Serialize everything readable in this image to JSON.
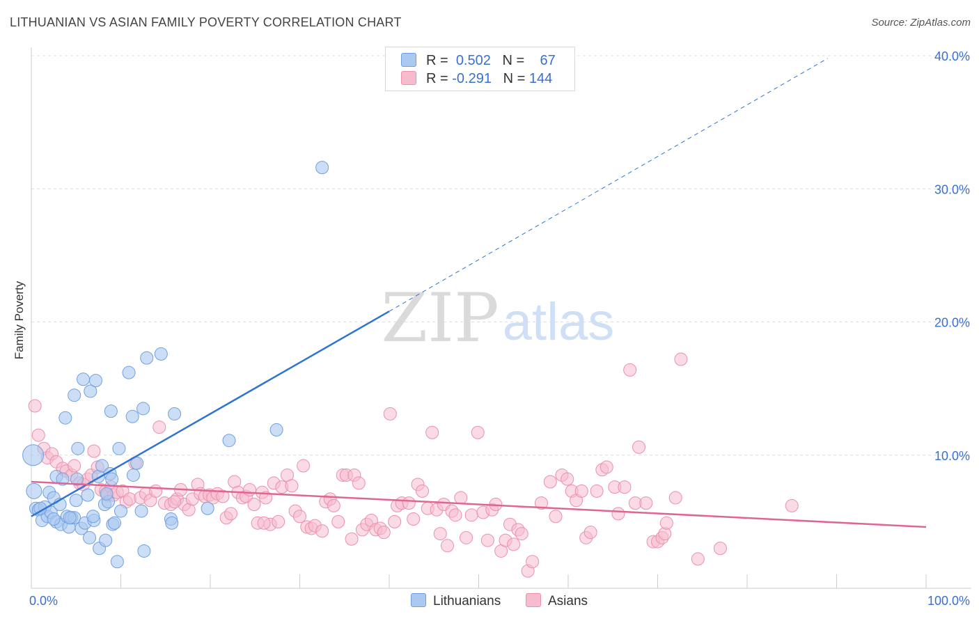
{
  "title": "LITHUANIAN VS ASIAN FAMILY POVERTY CORRELATION CHART",
  "source": "Source: ZipAtlas.com",
  "watermark": {
    "zip": "ZIP",
    "atlas": "atlas"
  },
  "legend_top": {
    "row1": {
      "r_label": "R =",
      "r_value": "0.502",
      "n_label": "N =",
      "n_value": "67"
    },
    "row2": {
      "r_label": "R =",
      "r_value": "-0.291",
      "n_label": "N =",
      "n_value": "144"
    }
  },
  "legend_bottom": {
    "series1": "Lithuanians",
    "series2": "Asians"
  },
  "colors": {
    "lithuanian_fill": "#aac8f0",
    "lithuanian_stroke": "#6f9fe0",
    "lithuanian_line": "#2f74d0",
    "asian_fill": "#f6bccd",
    "asian_stroke": "#ec8fab",
    "asian_line": "#e06595",
    "axis_label": "#3a6fd1",
    "grid": "#dcdcdc"
  },
  "chart_data": {
    "type": "scatter",
    "title": "LITHUANIAN VS ASIAN FAMILY POVERTY CORRELATION CHART",
    "xlabel": "",
    "ylabel": "Family Poverty",
    "xlim": [
      0,
      100
    ],
    "ylim": [
      0,
      40
    ],
    "x_tick_labels": [
      "0.0%",
      "100.0%"
    ],
    "y_tick_labels": [
      "10.0%",
      "20.0%",
      "30.0%",
      "40.0%"
    ],
    "y_ticks": [
      10,
      20,
      30,
      40
    ],
    "grid": true,
    "legend_position": "top-center",
    "series": [
      {
        "name": "Lithuanians",
        "R": 0.502,
        "N": 67,
        "trend": {
          "x_start": 0,
          "y_start": 5.4,
          "x_end_solid": 40,
          "y_end_solid": 20.8,
          "x_end_dashed": 89,
          "y_end_dashed": 39.8
        },
        "points": [
          [
            0.2,
            10.0
          ],
          [
            0.3,
            7.3
          ],
          [
            0.5,
            6.0
          ],
          [
            0.8,
            5.9
          ],
          [
            1.2,
            5.1
          ],
          [
            1.5,
            6.1
          ],
          [
            1.8,
            5.4
          ],
          [
            2.0,
            7.2
          ],
          [
            2.2,
            5.7
          ],
          [
            2.5,
            6.8
          ],
          [
            2.8,
            5.0
          ],
          [
            2.8,
            8.4
          ],
          [
            3.3,
            4.8
          ],
          [
            3.5,
            8.2
          ],
          [
            3.2,
            6.3
          ],
          [
            3.8,
            12.8
          ],
          [
            4.0,
            5.4
          ],
          [
            4.2,
            4.6
          ],
          [
            4.5,
            5.3
          ],
          [
            4.8,
            5.3
          ],
          [
            4.8,
            14.5
          ],
          [
            5.0,
            6.6
          ],
          [
            5.2,
            10.5
          ],
          [
            5.6,
            4.5
          ],
          [
            5.8,
            15.7
          ],
          [
            6.0,
            4.9
          ],
          [
            6.3,
            7.0
          ],
          [
            6.5,
            3.8
          ],
          [
            6.6,
            14.8
          ],
          [
            7.0,
            5.1
          ],
          [
            7.2,
            15.6
          ],
          [
            7.5,
            8.4
          ],
          [
            7.6,
            3.0
          ],
          [
            7.9,
            9.2
          ],
          [
            8.2,
            6.3
          ],
          [
            8.3,
            3.6
          ],
          [
            8.6,
            6.5
          ],
          [
            8.8,
            8.6
          ],
          [
            8.9,
            13.3
          ],
          [
            9.1,
            4.8
          ],
          [
            9.3,
            4.9
          ],
          [
            9.6,
            2.0
          ],
          [
            9.8,
            10.5
          ],
          [
            10.0,
            5.8
          ],
          [
            10.9,
            16.2
          ],
          [
            11.3,
            12.9
          ],
          [
            11.4,
            8.5
          ],
          [
            11.8,
            9.4
          ],
          [
            12.3,
            5.8
          ],
          [
            12.5,
            13.5
          ],
          [
            12.6,
            2.8
          ],
          [
            12.9,
            17.3
          ],
          [
            14.5,
            17.6
          ],
          [
            15.6,
            5.2
          ],
          [
            15.7,
            4.9
          ],
          [
            16.0,
            13.1
          ],
          [
            19.7,
            6.0
          ],
          [
            22.1,
            11.1
          ],
          [
            27.4,
            11.9
          ],
          [
            32.5,
            31.6
          ],
          [
            1.0,
            6.0
          ],
          [
            2.5,
            5.2
          ],
          [
            4.3,
            5.3
          ],
          [
            5.1,
            8.2
          ],
          [
            6.9,
            5.4
          ],
          [
            9.0,
            8.2
          ],
          [
            8.4,
            7.1
          ]
        ]
      },
      {
        "name": "Asians",
        "R": -0.291,
        "N": 144,
        "trend": {
          "x_start": 0,
          "y_start": 8.0,
          "x_end": 100,
          "y_end": 4.6
        },
        "points": [
          [
            0.4,
            13.7
          ],
          [
            0.8,
            11.5
          ],
          [
            1.4,
            10.5
          ],
          [
            1.8,
            9.8
          ],
          [
            2.3,
            10.1
          ],
          [
            2.8,
            9.5
          ],
          [
            3.5,
            9.0
          ],
          [
            3.9,
            8.8
          ],
          [
            4.5,
            8.5
          ],
          [
            4.8,
            9.2
          ],
          [
            5.4,
            7.9
          ],
          [
            5.8,
            7.8
          ],
          [
            6.3,
            8.2
          ],
          [
            6.7,
            8.5
          ],
          [
            7.0,
            10.3
          ],
          [
            7.4,
            9.1
          ],
          [
            7.8,
            7.4
          ],
          [
            8.3,
            7.3
          ],
          [
            8.5,
            7.0
          ],
          [
            8.9,
            7.6
          ],
          [
            9.2,
            7.0
          ],
          [
            9.6,
            7.2
          ],
          [
            10.2,
            7.3
          ],
          [
            10.6,
            6.5
          ],
          [
            11.0,
            6.7
          ],
          [
            11.6,
            9.4
          ],
          [
            12.2,
            6.8
          ],
          [
            12.8,
            7.1
          ],
          [
            13.3,
            6.6
          ],
          [
            13.9,
            7.3
          ],
          [
            14.3,
            12.1
          ],
          [
            14.9,
            6.4
          ],
          [
            15.6,
            6.3
          ],
          [
            16.3,
            6.7
          ],
          [
            16.7,
            7.4
          ],
          [
            17.1,
            6.3
          ],
          [
            17.6,
            5.9
          ],
          [
            18.0,
            6.7
          ],
          [
            18.6,
            7.8
          ],
          [
            18.9,
            7.1
          ],
          [
            19.4,
            6.9
          ],
          [
            19.9,
            7.0
          ],
          [
            20.3,
            6.8
          ],
          [
            20.8,
            7.1
          ],
          [
            21.4,
            6.9
          ],
          [
            21.8,
            5.3
          ],
          [
            22.3,
            5.6
          ],
          [
            22.7,
            8.0
          ],
          [
            23.1,
            7.2
          ],
          [
            23.6,
            6.8
          ],
          [
            24.0,
            6.9
          ],
          [
            24.4,
            7.4
          ],
          [
            24.9,
            6.3
          ],
          [
            25.3,
            4.9
          ],
          [
            25.8,
            7.2
          ],
          [
            26.2,
            6.8
          ],
          [
            26.7,
            4.8
          ],
          [
            27.1,
            7.9
          ],
          [
            27.6,
            5.0
          ],
          [
            28.0,
            7.6
          ],
          [
            28.6,
            8.5
          ],
          [
            29.1,
            7.7
          ],
          [
            29.5,
            5.8
          ],
          [
            30.0,
            5.4
          ],
          [
            30.4,
            9.2
          ],
          [
            30.8,
            4.6
          ],
          [
            31.3,
            4.5
          ],
          [
            31.7,
            4.7
          ],
          [
            32.5,
            4.3
          ],
          [
            32.9,
            6.5
          ],
          [
            33.4,
            6.7
          ],
          [
            33.8,
            6.2
          ],
          [
            34.3,
            5.0
          ],
          [
            34.8,
            8.5
          ],
          [
            35.2,
            8.5
          ],
          [
            35.8,
            3.7
          ],
          [
            36.1,
            8.5
          ],
          [
            36.6,
            7.9
          ],
          [
            37.0,
            4.4
          ],
          [
            37.5,
            4.8
          ],
          [
            38.0,
            5.1
          ],
          [
            38.5,
            4.4
          ],
          [
            39.0,
            4.5
          ],
          [
            39.4,
            4.2
          ],
          [
            40.1,
            13.1
          ],
          [
            40.6,
            5.0
          ],
          [
            40.9,
            6.2
          ],
          [
            41.4,
            6.4
          ],
          [
            42.2,
            6.4
          ],
          [
            42.7,
            5.2
          ],
          [
            43.2,
            7.8
          ],
          [
            43.7,
            7.3
          ],
          [
            44.3,
            6.0
          ],
          [
            44.8,
            11.7
          ],
          [
            45.3,
            5.9
          ],
          [
            45.7,
            4.1
          ],
          [
            46.1,
            6.3
          ],
          [
            46.5,
            3.2
          ],
          [
            47.0,
            5.8
          ],
          [
            47.4,
            5.5
          ],
          [
            48.0,
            6.8
          ],
          [
            48.6,
            3.8
          ],
          [
            49.2,
            5.5
          ],
          [
            49.9,
            11.7
          ],
          [
            50.5,
            5.7
          ],
          [
            51.0,
            3.6
          ],
          [
            51.5,
            5.9
          ],
          [
            51.9,
            6.3
          ],
          [
            52.5,
            2.8
          ],
          [
            53.0,
            3.6
          ],
          [
            53.5,
            4.8
          ],
          [
            53.9,
            3.3
          ],
          [
            54.4,
            4.4
          ],
          [
            54.8,
            4.1
          ],
          [
            55.5,
            1.3
          ],
          [
            56.0,
            2.0
          ],
          [
            57.0,
            6.4
          ],
          [
            58.0,
            8.0
          ],
          [
            58.6,
            5.4
          ],
          [
            59.3,
            8.5
          ],
          [
            59.9,
            8.2
          ],
          [
            60.4,
            7.3
          ],
          [
            60.9,
            6.6
          ],
          [
            61.5,
            7.3
          ],
          [
            62.0,
            3.8
          ],
          [
            62.5,
            4.2
          ],
          [
            63.2,
            7.3
          ],
          [
            63.8,
            8.9
          ],
          [
            64.3,
            9.1
          ],
          [
            65.2,
            7.6
          ],
          [
            65.6,
            5.6
          ],
          [
            66.3,
            7.6
          ],
          [
            66.9,
            16.4
          ],
          [
            67.5,
            6.4
          ],
          [
            67.9,
            10.6
          ],
          [
            68.7,
            6.4
          ],
          [
            69.5,
            3.5
          ],
          [
            70.0,
            3.5
          ],
          [
            70.5,
            3.8
          ],
          [
            70.8,
            4.1
          ],
          [
            71.0,
            4.9
          ],
          [
            72.0,
            6.8
          ],
          [
            72.6,
            17.2
          ],
          [
            74.5,
            2.2
          ],
          [
            77.0,
            3.0
          ],
          [
            85.0,
            6.2
          ],
          [
            16.0,
            6.5
          ],
          [
            26.0,
            4.9
          ]
        ]
      }
    ]
  }
}
